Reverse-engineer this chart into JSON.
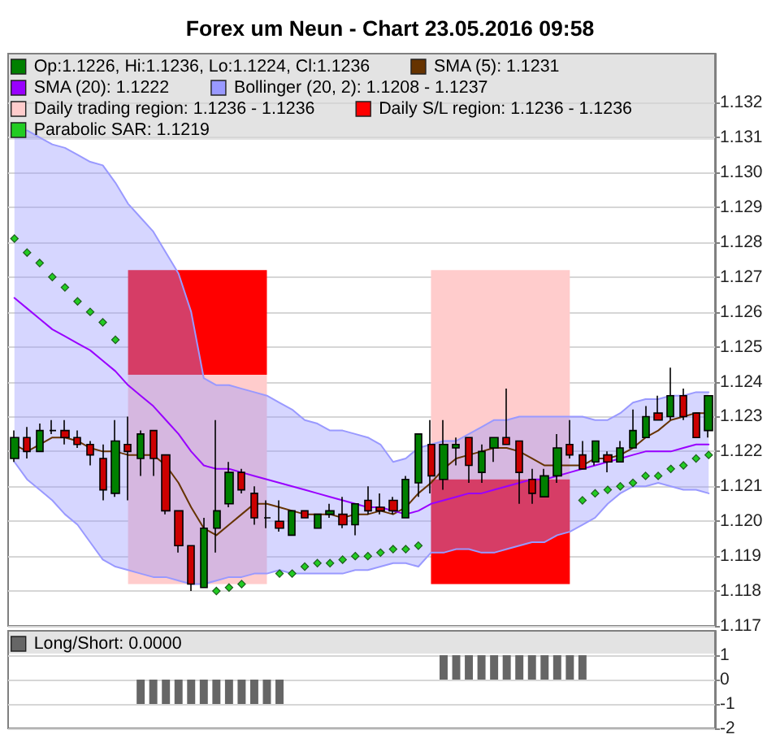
{
  "chart_data": [
    {
      "type": "candlestick",
      "title": "Forex um Neun - Chart 23.05.2016 09:58",
      "categories": [
        null,
        null,
        null,
        null,
        null,
        null,
        null,
        null,
        null,
        null,
        null,
        null,
        null,
        null,
        null,
        null,
        null,
        null,
        null,
        null,
        null,
        null,
        null,
        null,
        null,
        null,
        null,
        null,
        null,
        null,
        null,
        null,
        null,
        null,
        null,
        null,
        null,
        null,
        null,
        null,
        null,
        null,
        null,
        null,
        null,
        null,
        null,
        null,
        null,
        null,
        null,
        null,
        null,
        null,
        null,
        null
      ],
      "series": [
        {
          "name": "Op:1.1226, Hi:1.1236, Lo:1.1224, Cl:1.1236",
          "color": "#008000",
          "ohlc": [
            [
              1.1218,
              1.1226,
              1.1217,
              1.1224
            ],
            [
              1.1224,
              1.1227,
              1.1218,
              1.122
            ],
            [
              1.122,
              1.1228,
              1.122,
              1.1226
            ],
            [
              1.1226,
              1.1229,
              1.1225,
              1.1226
            ],
            [
              1.1226,
              1.1229,
              1.1222,
              1.1224
            ],
            [
              1.1224,
              1.1226,
              1.1221,
              1.1222
            ],
            [
              1.1222,
              1.1223,
              1.1216,
              1.1219
            ],
            [
              1.1218,
              1.1222,
              1.1206,
              1.1209
            ],
            [
              1.1208,
              1.1229,
              1.1207,
              1.1223
            ],
            [
              1.1222,
              1.123,
              1.1206,
              1.122
            ],
            [
              1.1218,
              1.1226,
              1.1213,
              1.1225
            ],
            [
              1.1226,
              1.1226,
              1.1213,
              1.1218
            ],
            [
              1.1219,
              1.1219,
              1.1202,
              1.1203
            ],
            [
              1.1203,
              1.1203,
              1.1191,
              1.1193
            ],
            [
              1.1193,
              1.1193,
              1.118,
              1.1182
            ],
            [
              1.1181,
              1.1201,
              1.1181,
              1.1198
            ],
            [
              1.1198,
              1.1229,
              1.1191,
              1.1203
            ],
            [
              1.1205,
              1.1217,
              1.1204,
              1.1214
            ],
            [
              1.1214,
              1.1215,
              1.1208,
              1.1209
            ],
            [
              1.1208,
              1.121,
              1.1199,
              1.1201
            ],
            [
              1.1201,
              1.1206,
              1.1198,
              1.1201
            ],
            [
              1.12,
              1.1206,
              1.1197,
              1.1198
            ],
            [
              1.1196,
              1.1203,
              1.1196,
              1.1203
            ],
            [
              1.1203,
              1.1203,
              1.1201,
              1.1201
            ],
            [
              1.1198,
              1.1202,
              1.1198,
              1.1202
            ],
            [
              1.1202,
              1.1205,
              1.1201,
              1.1203
            ],
            [
              1.1202,
              1.1207,
              1.1198,
              1.1199
            ],
            [
              1.1199,
              1.1205,
              1.1196,
              1.1205
            ],
            [
              1.1206,
              1.121,
              1.1202,
              1.1203
            ],
            [
              1.1204,
              1.1208,
              1.1202,
              1.1203
            ],
            [
              1.1206,
              1.1207,
              1.1202,
              1.1203
            ],
            [
              1.1201,
              1.1213,
              1.1201,
              1.1212
            ],
            [
              1.1211,
              1.1225,
              1.1207,
              1.1225
            ],
            [
              1.1222,
              1.1229,
              1.1208,
              1.1213
            ],
            [
              1.1212,
              1.1229,
              1.1209,
              1.1222
            ],
            [
              1.1221,
              1.1224,
              1.1216,
              1.1222
            ],
            [
              1.1224,
              1.1224,
              1.1211,
              1.1216
            ],
            [
              1.1214,
              1.1222,
              1.1211,
              1.122
            ],
            [
              1.1221,
              1.1224,
              1.1217,
              1.1224
            ],
            [
              1.1224,
              1.1238,
              1.1222,
              1.1222
            ],
            [
              1.1223,
              1.1223,
              1.1205,
              1.1214
            ],
            [
              1.1212,
              1.1215,
              1.1205,
              1.1208
            ],
            [
              1.1207,
              1.1215,
              1.1207,
              1.1213
            ],
            [
              1.1213,
              1.1225,
              1.1211,
              1.1221
            ],
            [
              1.1222,
              1.1229,
              1.1218,
              1.1219
            ],
            [
              1.1219,
              1.1223,
              1.1215,
              1.1215
            ],
            [
              1.1217,
              1.1223,
              1.1216,
              1.1223
            ],
            [
              1.1219,
              1.122,
              1.1214,
              1.1217
            ],
            [
              1.1217,
              1.1223,
              1.1217,
              1.1221
            ],
            [
              1.1221,
              1.1232,
              1.1221,
              1.1226
            ],
            [
              1.1224,
              1.1233,
              1.1224,
              1.123
            ],
            [
              1.1231,
              1.1236,
              1.1229,
              1.1229
            ],
            [
              1.123,
              1.1244,
              1.1229,
              1.1236
            ],
            [
              1.1236,
              1.1238,
              1.1229,
              1.123
            ],
            [
              1.1231,
              1.1231,
              1.1224,
              1.1224
            ],
            [
              1.1226,
              1.1236,
              1.1224,
              1.1236
            ]
          ],
          "colors": [
            "#008000",
            "#cc0000",
            "#008000",
            "#000000",
            "#cc0000",
            "#cc0000",
            "#cc0000",
            "#cc0000",
            "#008000",
            "#cc0000",
            "#008000",
            "#cc0000",
            "#cc0000",
            "#cc0000",
            "#cc0000",
            "#008000",
            "#008000",
            "#008000",
            "#cc0000",
            "#cc0000",
            "#000000",
            "#cc0000",
            "#008000",
            "#cc0000",
            "#008000",
            "#008000",
            "#cc0000",
            "#008000",
            "#cc0000",
            "#cc0000",
            "#cc0000",
            "#008000",
            "#008000",
            "#cc0000",
            "#008000",
            "#008000",
            "#cc0000",
            "#008000",
            "#008000",
            "#cc0000",
            "#cc0000",
            "#cc0000",
            "#008000",
            "#008000",
            "#cc0000",
            "#cc0000",
            "#008000",
            "#cc0000",
            "#008000",
            "#008000",
            "#008000",
            "#cc0000",
            "#008000",
            "#cc0000",
            "#cc0000",
            "#008000"
          ]
        },
        {
          "type": "line",
          "name": "SMA (5): 1.1231",
          "color": "#663300",
          "values": [
            1.1222,
            1.122,
            1.1222,
            1.1224,
            1.1224,
            1.1223,
            1.1221,
            1.122,
            1.122,
            1.1219,
            1.1219,
            1.1219,
            1.1216,
            1.1211,
            1.1204,
            1.1198,
            1.1196,
            1.1199,
            1.1202,
            1.1205,
            1.1205,
            1.1204,
            1.1203,
            1.1202,
            1.1202,
            1.1202,
            1.1201,
            1.1202,
            1.1202,
            1.1203,
            1.1202,
            1.1204,
            1.1208,
            1.1211,
            1.1215,
            1.1218,
            1.1219,
            1.122,
            1.1221,
            1.1221,
            1.122,
            1.1218,
            1.1216,
            1.1216,
            1.1216,
            1.1216,
            1.1218,
            1.1218,
            1.1219,
            1.1221,
            1.1224,
            1.1226,
            1.1229,
            1.123,
            1.1231,
            1.1231
          ]
        },
        {
          "type": "line",
          "name": "SMA (20): 1.1222",
          "color": "#9900ff",
          "values": [
            1.1264,
            1.1261,
            1.1258,
            1.1255,
            1.1253,
            1.1251,
            1.1249,
            1.1246,
            1.1243,
            1.1239,
            1.1236,
            1.1233,
            1.1229,
            1.1225,
            1.122,
            1.1216,
            1.1215,
            1.1215,
            1.1214,
            1.1213,
            1.1212,
            1.1211,
            1.121,
            1.1209,
            1.1208,
            1.1207,
            1.1206,
            1.1205,
            1.1204,
            1.1204,
            1.1203,
            1.1202,
            1.1203,
            1.1205,
            1.1206,
            1.1207,
            1.1208,
            1.1208,
            1.1209,
            1.121,
            1.1211,
            1.1212,
            1.1212,
            1.1213,
            1.1214,
            1.1215,
            1.1216,
            1.1217,
            1.1218,
            1.1219,
            1.122,
            1.122,
            1.122,
            1.1221,
            1.1222,
            1.1222
          ]
        },
        {
          "type": "line",
          "name": "Bollinger (20, 2): 1.1208 - 1.1237",
          "color": "#9999ff",
          "values": [
            null,
            1.1312,
            1.131,
            1.1308,
            1.1307,
            1.1305,
            1.1303,
            1.1302,
            1.1297,
            1.1291,
            1.1287,
            1.1283,
            1.1277,
            1.1271,
            1.126,
            1.1241,
            1.1239,
            1.1239,
            1.1238,
            1.1237,
            1.1236,
            1.1234,
            1.1232,
            1.1229,
            1.1228,
            1.1226,
            1.1226,
            1.1225,
            1.1224,
            1.1222,
            1.1217,
            1.1218,
            1.1221,
            1.1222,
            1.1223,
            1.1223,
            1.1225,
            1.1227,
            1.1229,
            1.1229,
            1.123,
            1.123,
            1.123,
            1.123,
            1.123,
            1.123,
            1.1229,
            1.1229,
            1.1231,
            1.1234,
            1.1235,
            1.1235,
            1.1236,
            1.1236,
            1.1237,
            1.1237
          ],
          "upper": [
            1.1314,
            1.1312,
            1.131,
            1.1308,
            1.1307,
            1.1305,
            1.1303,
            1.1302,
            1.1297,
            1.1291,
            1.1287,
            1.1283,
            1.1277,
            1.1271,
            1.126,
            1.1241,
            1.1239,
            1.1239,
            1.1238,
            1.1237,
            1.1236,
            1.1234,
            1.1232,
            1.1229,
            1.1228,
            1.1226,
            1.1226,
            1.1225,
            1.1224,
            1.1222,
            1.1217,
            1.1218,
            1.1221,
            1.1222,
            1.1223,
            1.1223,
            1.1225,
            1.1227,
            1.1229,
            1.1229,
            1.123,
            1.123,
            1.123,
            1.123,
            1.123,
            1.123,
            1.1229,
            1.1229,
            1.1231,
            1.1234,
            1.1235,
            1.1235,
            1.1236,
            1.1236,
            1.1237,
            1.1237
          ],
          "lower": [
            1.1217,
            1.1212,
            1.1209,
            1.1206,
            1.1202,
            1.1199,
            1.1194,
            1.1189,
            1.1187,
            1.1186,
            1.1185,
            1.1184,
            1.1184,
            1.1183,
            1.1182,
            1.1182,
            1.1183,
            1.1184,
            1.1184,
            1.1185,
            1.1185,
            1.1186,
            1.1185,
            1.1185,
            1.1185,
            1.1185,
            1.1185,
            1.1186,
            1.1186,
            1.1187,
            1.1188,
            1.1188,
            1.1187,
            1.1191,
            1.1191,
            1.1192,
            1.1192,
            1.1191,
            1.1191,
            1.1192,
            1.1193,
            1.1194,
            1.1194,
            1.1196,
            1.1197,
            1.1199,
            1.1201,
            1.1205,
            1.1208,
            1.121,
            1.121,
            1.1211,
            1.121,
            1.1209,
            1.1209,
            1.1208
          ]
        },
        {
          "type": "line",
          "color": "#9999ff",
          "values": [
            1.1217,
            1.1212,
            1.1209,
            1.1206,
            1.1202,
            1.1199,
            1.1194,
            1.1189,
            1.1187,
            1.1186,
            1.1185,
            1.1184,
            1.1184,
            1.1183,
            1.1182,
            1.1182,
            1.1183,
            1.1184,
            1.1184,
            1.1185,
            1.1185,
            1.1186,
            1.1185,
            1.1185,
            1.1185,
            1.1185,
            1.1185,
            1.1186,
            1.1186,
            1.1187,
            1.1188,
            1.1188,
            1.1187,
            1.1191,
            1.1191,
            1.1192,
            1.1192,
            1.1191,
            1.1191,
            1.1192,
            1.1193,
            1.1194,
            1.1194,
            1.1196,
            1.1197,
            1.1199,
            1.1201,
            1.1205,
            1.1208,
            1.121,
            1.121,
            1.1211,
            1.121,
            1.1209,
            1.1209,
            1.1208
          ]
        },
        {
          "type": "area",
          "name": "Daily trading region: 1.1236 - 1.1236",
          "color": "#ffcccc",
          "values": [
            null,
            null,
            null,
            null,
            null,
            null,
            null,
            null,
            null,
            null,
            null,
            null,
            null,
            null,
            null,
            null,
            null,
            null,
            null,
            null,
            null,
            null,
            null,
            null,
            null,
            null,
            null,
            null,
            null,
            null,
            null,
            null,
            null,
            null,
            null,
            null,
            null,
            null,
            null,
            null,
            null,
            null,
            null,
            null,
            null,
            null,
            null,
            null,
            null,
            null,
            null,
            null,
            null,
            null,
            null,
            null
          ],
          "lower": [
            null,
            null,
            null,
            null,
            null,
            null,
            null,
            null,
            null,
            1.1182,
            1.1182,
            1.1182,
            1.1182,
            1.1182,
            1.1182,
            1.1182,
            1.1182,
            1.1182,
            1.1182,
            1.1182,
            1.1182,
            null,
            null,
            null,
            null,
            null,
            null,
            null,
            null,
            null,
            null,
            null,
            null,
            1.1212,
            1.1212,
            1.1212,
            1.1212,
            1.1212,
            1.1212,
            1.1212,
            1.1212,
            1.1212,
            1.1212,
            1.1212,
            1.1212,
            null,
            null,
            null,
            null,
            null,
            null,
            null,
            null,
            null,
            null,
            null
          ],
          "upper": [
            null,
            null,
            null,
            null,
            null,
            null,
            null,
            null,
            null,
            1.1242,
            1.1242,
            1.1242,
            1.1242,
            1.1242,
            1.1242,
            1.1242,
            1.1242,
            1.1242,
            1.1242,
            1.1242,
            1.1242,
            null,
            null,
            null,
            null,
            null,
            null,
            null,
            null,
            null,
            null,
            null,
            null,
            1.1272,
            1.1272,
            1.1272,
            1.1272,
            1.1272,
            1.1272,
            1.1272,
            1.1272,
            1.1272,
            1.1272,
            1.1272,
            1.1272,
            null,
            null,
            null,
            null,
            null,
            null,
            null,
            null,
            null,
            null,
            null
          ]
        },
        {
          "type": "area",
          "name": "Daily S/L region: 1.1236 - 1.1236",
          "color": "#ff0000",
          "values": [
            null,
            null,
            null,
            null,
            null,
            null,
            null,
            null,
            null,
            null,
            null,
            null,
            null,
            null,
            null,
            null,
            null,
            null,
            null,
            null,
            null,
            null,
            null,
            null,
            null,
            null,
            null,
            null,
            null,
            null,
            null,
            null,
            null,
            null,
            null,
            null,
            null,
            null,
            null,
            null,
            null,
            null,
            null,
            null,
            null,
            null,
            null,
            null,
            null,
            null,
            null,
            null,
            null,
            null,
            null,
            null
          ],
          "lower": [
            null,
            null,
            null,
            null,
            null,
            null,
            null,
            null,
            null,
            1.1242,
            1.1242,
            1.1242,
            1.1242,
            1.1242,
            1.1242,
            1.1242,
            1.1242,
            1.1242,
            1.1242,
            1.1242,
            1.1242,
            null,
            null,
            null,
            null,
            null,
            null,
            null,
            null,
            null,
            null,
            null,
            null,
            1.1182,
            1.1182,
            1.1182,
            1.1182,
            1.1182,
            1.1182,
            1.1182,
            1.1182,
            1.1182,
            1.1182,
            1.1182,
            1.1182,
            null,
            null,
            null,
            null,
            null,
            null,
            null,
            null,
            null,
            null,
            null
          ],
          "upper": [
            null,
            null,
            null,
            null,
            null,
            null,
            null,
            null,
            null,
            1.1272,
            1.1272,
            1.1272,
            1.1272,
            1.1272,
            1.1272,
            1.1272,
            1.1272,
            1.1272,
            1.1272,
            1.1272,
            1.1272,
            null,
            null,
            null,
            null,
            null,
            null,
            null,
            null,
            null,
            null,
            null,
            null,
            1.1212,
            1.1212,
            1.1212,
            1.1212,
            1.1212,
            1.1212,
            1.1212,
            1.1212,
            1.1212,
            1.1212,
            1.1212,
            1.1212,
            null,
            null,
            null,
            null,
            null,
            null,
            null,
            null,
            null,
            null,
            null
          ]
        },
        {
          "type": "scatter",
          "name": "Parabolic SAR: 1.1219",
          "color": "#22cc22",
          "marker": "diamond",
          "values": [
            1.1281,
            1.1277,
            1.1274,
            1.127,
            1.1267,
            1.1263,
            1.126,
            1.1257,
            1.1252,
            null,
            null,
            null,
            null,
            null,
            null,
            null,
            1.118,
            1.1181,
            1.1182,
            null,
            null,
            1.1185,
            1.1185,
            1.1187,
            1.1188,
            1.1188,
            1.1189,
            1.119,
            1.119,
            1.1191,
            1.1192,
            1.1192,
            1.1193,
            null,
            null,
            null,
            null,
            null,
            null,
            null,
            null,
            null,
            null,
            null,
            null,
            1.1206,
            1.1208,
            1.1209,
            1.121,
            1.1211,
            1.1213,
            1.1213,
            1.1215,
            1.1216,
            1.1218,
            1.1219
          ]
        }
      ],
      "ylim": [
        1.117,
        1.1334
      ],
      "yticks": [
        1.117,
        1.118,
        1.119,
        {
          "value": 1.12,
          "label": "1.120"
        },
        1.121,
        1.122,
        1.123,
        1.124,
        1.125,
        1.126,
        1.127,
        1.128,
        1.129,
        {
          "value": 1.13,
          "label": "1.130"
        },
        1.131,
        1.132
      ],
      "grid": "y",
      "legend": "top left",
      "tick_labels": "y"
    },
    {
      "type": "bar",
      "categories": [
        null,
        null,
        null,
        null,
        null,
        null,
        null,
        null,
        null,
        null,
        null,
        null,
        null,
        null,
        null,
        null,
        null,
        null,
        null,
        null,
        null,
        null,
        null,
        null,
        null,
        null,
        null,
        null,
        null,
        null,
        null,
        null,
        null,
        null,
        null,
        null,
        null,
        null,
        null,
        null,
        null,
        null,
        null,
        null,
        null,
        null,
        null,
        null,
        null,
        null,
        null,
        null,
        null,
        null,
        null,
        null
      ],
      "series": [
        {
          "name": "Long/Short: 0.0000",
          "color": "#666666",
          "values": [
            0,
            0,
            0,
            0,
            0,
            0,
            0,
            0,
            0,
            0,
            -1,
            -1,
            -1,
            -1,
            -1,
            -1,
            -1,
            -1,
            -1,
            -1,
            -1,
            -1,
            0,
            0,
            0,
            0,
            0,
            0,
            0,
            0,
            0,
            0,
            0,
            0,
            1,
            1,
            1,
            1,
            1,
            1,
            1,
            1,
            1,
            1,
            1,
            1,
            0,
            0,
            0,
            0,
            0,
            0,
            0,
            0,
            0,
            0
          ]
        }
      ],
      "ylim": [
        -2,
        2
      ],
      "yticks": [
        -2,
        -1,
        0,
        1
      ],
      "grid": "y",
      "legend": "top left",
      "tick_labels": "y"
    }
  ]
}
